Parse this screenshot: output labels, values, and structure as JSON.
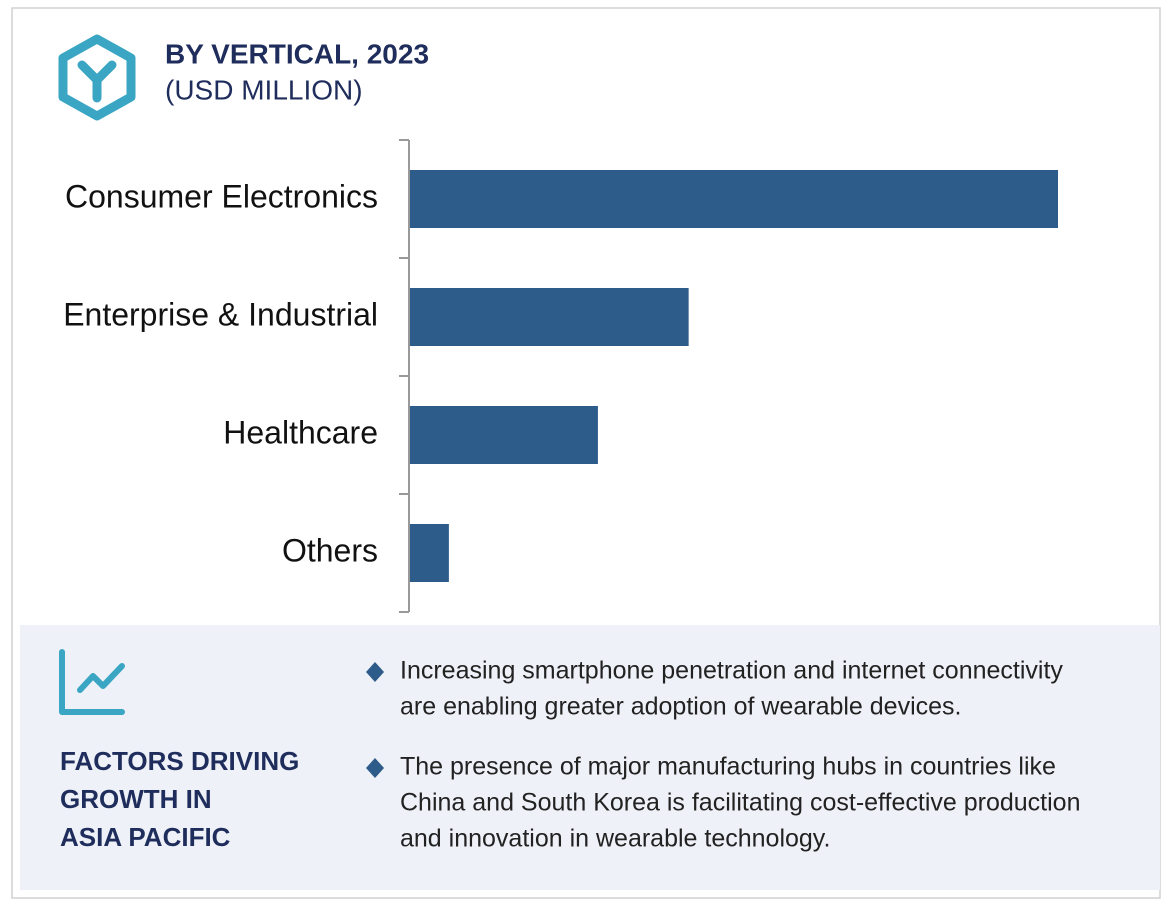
{
  "chart_data": {
    "type": "bar",
    "orientation": "horizontal",
    "title": "BY VERTICAL, 2023",
    "subtitle": "(USD MILLION)",
    "categories": [
      "Consumer Electronics",
      "Enterprise & Industrial",
      "Healthcare",
      "Others"
    ],
    "values": [
      100,
      43,
      29,
      6
    ],
    "color": "#2d5b8a"
  },
  "panel": {
    "heading": [
      "FACTORS DRIVING",
      "GROWTH IN",
      "ASIA PACIFIC"
    ],
    "bullets": [
      [
        "Increasing smartphone penetration and internet connectivity",
        "are enabling greater adoption of wearable devices."
      ],
      [
        "The presence of major manufacturing hubs in countries like",
        "China and South Korea is facilitating cost-effective production",
        "and innovation in wearable technology."
      ]
    ]
  }
}
